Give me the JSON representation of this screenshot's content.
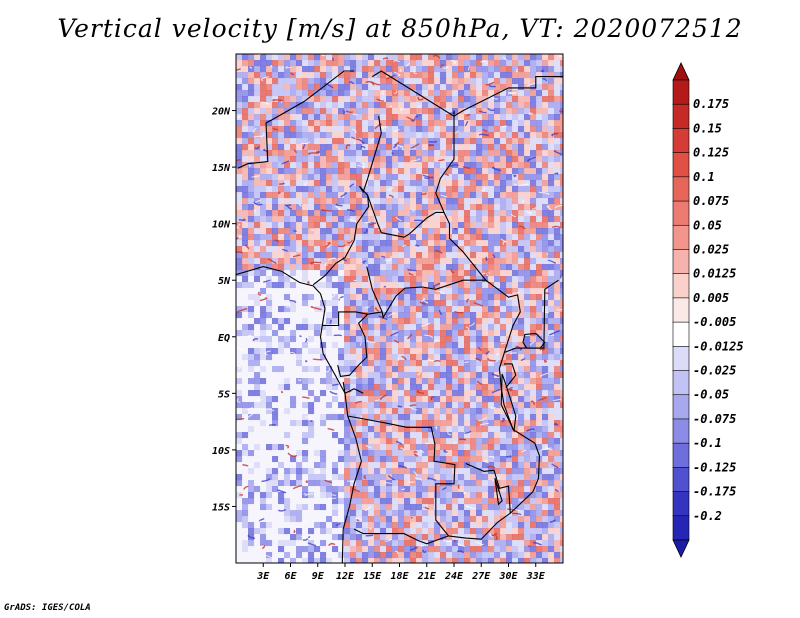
{
  "title": "Vertical velocity [m/s] at 850hPa, VT: 2020072512",
  "credit": "GrADS: IGES/COLA",
  "map": {
    "lon_range": [
      0,
      36
    ],
    "lat_range": [
      -20,
      25
    ],
    "lat_ticks": [
      {
        "lat": 20,
        "label": "20N"
      },
      {
        "lat": 15,
        "label": "15N"
      },
      {
        "lat": 10,
        "label": "10N"
      },
      {
        "lat": 5,
        "label": "5N"
      },
      {
        "lat": 0,
        "label": "EQ"
      },
      {
        "lat": -5,
        "label": "5S"
      },
      {
        "lat": -10,
        "label": "10S"
      },
      {
        "lat": -15,
        "label": "15S"
      }
    ],
    "lon_ticks": [
      {
        "lon": 3,
        "label": "3E"
      },
      {
        "lon": 6,
        "label": "6E"
      },
      {
        "lon": 9,
        "label": "9E"
      },
      {
        "lon": 12,
        "label": "12E"
      },
      {
        "lon": 15,
        "label": "15E"
      },
      {
        "lon": 18,
        "label": "18E"
      },
      {
        "lon": 21,
        "label": "21E"
      },
      {
        "lon": 24,
        "label": "24E"
      },
      {
        "lon": 27,
        "label": "27E"
      },
      {
        "lon": 30,
        "label": "30E"
      },
      {
        "lon": 33,
        "label": "33E"
      }
    ]
  },
  "colorbar": {
    "levels": [
      {
        "label": "0.175",
        "color": "#b51a1a"
      },
      {
        "label": "0.15",
        "color": "#c52a26"
      },
      {
        "label": "0.125",
        "color": "#d43c35"
      },
      {
        "label": "0.1",
        "color": "#e05045"
      },
      {
        "label": "0.075",
        "color": "#e6665a"
      },
      {
        "label": "0.05",
        "color": "#ec7c72"
      },
      {
        "label": "0.025",
        "color": "#f2968d"
      },
      {
        "label": "0.0125",
        "color": "#f6b3ad"
      },
      {
        "label": "0.005",
        "color": "#fad0cb"
      },
      {
        "label": "-0.005",
        "color": "#fbe9e7"
      },
      {
        "label": "-0.0125",
        "color": "#ffffff"
      },
      {
        "label": "-0.025",
        "color": "#dcdcf8"
      },
      {
        "label": "-0.05",
        "color": "#c2c2f4"
      },
      {
        "label": "-0.075",
        "color": "#a8a8ee"
      },
      {
        "label": "-0.1",
        "color": "#8c8ce6"
      },
      {
        "label": "-0.125",
        "color": "#6e6edc"
      },
      {
        "label": "-0.175",
        "color": "#5050d0"
      },
      {
        "label": "-0.2",
        "color": "#3434c0"
      }
    ],
    "top_triangle_color": "#a01010",
    "bottom_triangle_color": "#1c1caa",
    "extra_band_color": "#2626b6"
  }
}
